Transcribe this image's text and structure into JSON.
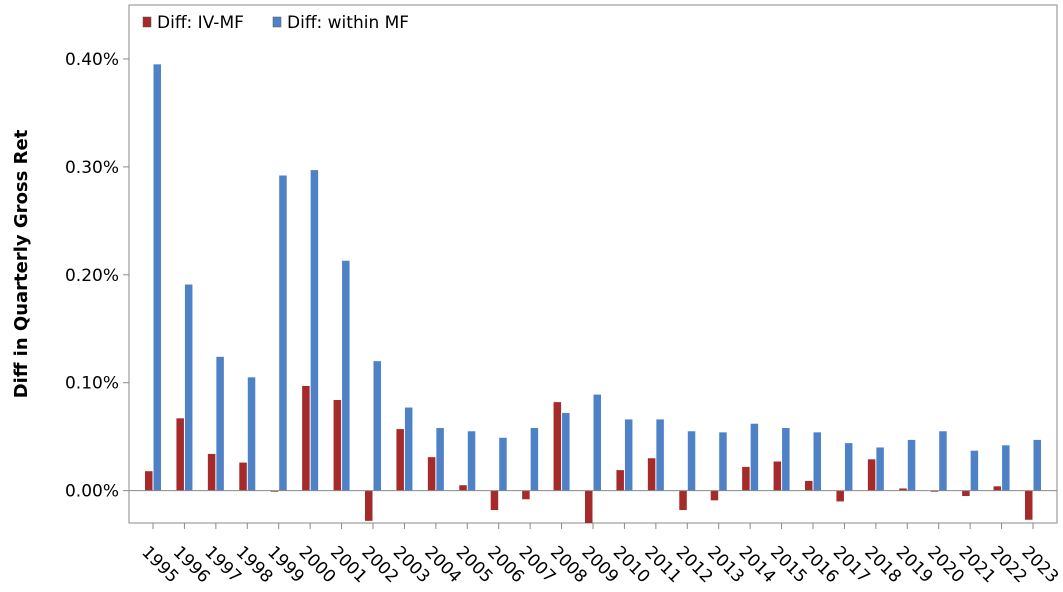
{
  "chart_data": {
    "type": "bar",
    "title": "",
    "xlabel": "",
    "ylabel": "Diff in Quarterly Gross Ret",
    "ylim": [
      -0.0003,
      0.0045
    ],
    "y_ticks": [
      0.0,
      0.001,
      0.002,
      0.003,
      0.004
    ],
    "y_tick_labels": [
      "0.00%",
      "0.10%",
      "0.20%",
      "0.30%",
      "0.40%"
    ],
    "grid": false,
    "legend_position": "top-left",
    "categories": [
      "1995",
      "1996",
      "1997",
      "1998",
      "1999",
      "2000",
      "2001",
      "2002",
      "2003",
      "2004",
      "2005",
      "2006",
      "2007",
      "2008",
      "2009",
      "2010",
      "2011",
      "2012",
      "2013",
      "2014",
      "2015",
      "2016",
      "2017",
      "2018",
      "2019",
      "2020",
      "2021",
      "2022",
      "2023"
    ],
    "series": [
      {
        "name": "Diff: IV-MF",
        "color": "#A52A2A",
        "values": [
          0.00018,
          0.00067,
          0.00034,
          0.00026,
          -1e-05,
          0.00097,
          0.00084,
          -0.00028,
          0.00057,
          0.00031,
          5e-05,
          -0.00018,
          -8e-05,
          0.00082,
          -0.0003,
          0.00019,
          0.0003,
          -0.00018,
          -9e-05,
          0.00022,
          0.00027,
          9e-05,
          -0.0001,
          0.00029,
          2e-05,
          -1e-05,
          -5e-05,
          4e-05,
          -0.00027
        ]
      },
      {
        "name": "Diff: within MF",
        "color": "#4F81C7",
        "values": [
          0.00395,
          0.00191,
          0.00124,
          0.00105,
          0.00292,
          0.00297,
          0.00213,
          0.0012,
          0.00077,
          0.00058,
          0.00055,
          0.00049,
          0.00058,
          0.00072,
          0.00089,
          0.00066,
          0.00066,
          0.00055,
          0.00054,
          0.00062,
          0.00058,
          0.00054,
          0.00044,
          0.0004,
          0.00047,
          0.00055,
          0.00037,
          0.00042,
          0.00047
        ]
      }
    ]
  }
}
